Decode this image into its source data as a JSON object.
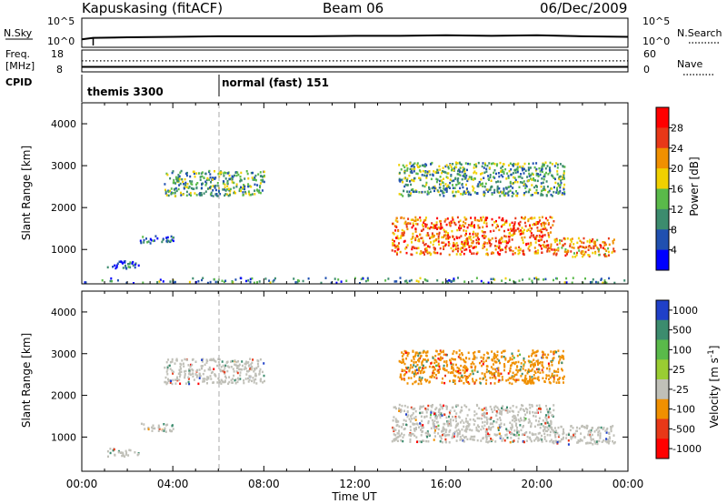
{
  "header": {
    "station": "Kapuskasing (fitACF)",
    "beam": "Beam 06",
    "date": "06/Dec/2009"
  },
  "left_labels": {
    "nsky": "N.Sky",
    "freq_line1": "Freq.",
    "freq_line2": "[MHz]",
    "cpid": "CPID"
  },
  "right_labels": {
    "nsearch": "N.Search",
    "nave": "Nave"
  },
  "cpid_segments": [
    "themis 3300",
    "normal (fast) 151"
  ],
  "chart_data": [
    {
      "type": "line",
      "panel": "noise",
      "ylabel": "N.Sky",
      "ytick_labels_left": [
        "10^5",
        "10^0"
      ],
      "ytick_labels_right": [
        "10^5",
        "10^0"
      ],
      "right_axis_label": "N.Search",
      "x": [
        0,
        0.5,
        2,
        4,
        6,
        8,
        10,
        12,
        14,
        16,
        18,
        20,
        22,
        24
      ],
      "series": [
        {
          "values": [
            1.2,
            1.5,
            1.6,
            1.7,
            1.8,
            1.8,
            1.8,
            1.9,
            1.9,
            2.0,
            1.9,
            2.0,
            1.8,
            1.7
          ]
        }
      ]
    },
    {
      "type": "line",
      "panel": "frequency",
      "ylabel": "Freq. [MHz]",
      "ytick_labels_left": [
        "18",
        "8"
      ],
      "ytick_labels_right": [
        "60",
        "0"
      ],
      "right_axis_label": "Nave",
      "x": [
        0,
        4,
        8,
        12,
        16,
        20,
        24
      ],
      "series": [
        {
          "values": [
            10.5,
            10.5,
            10.5,
            10.5,
            10.5,
            10.5,
            10.5
          ]
        },
        {
          "values": [
            13.5,
            13.5,
            13.5,
            13.5,
            13.5,
            13.5,
            13.5
          ]
        }
      ]
    },
    {
      "type": "heatmap",
      "panel": "power",
      "xlabel": "Time UT",
      "ylabel": "Slant Range [km]",
      "colorbar_label": "Power [dB]",
      "colorbar_ticks": [
        "28",
        "24",
        "20",
        "16",
        "12",
        "8",
        "4"
      ],
      "colors": [
        "#0000ff",
        "#2050b0",
        "#3c8c6e",
        "#5aba4a",
        "#f0d000",
        "#f09000",
        "#e83818",
        "#ff0000"
      ],
      "x_ticks": [
        "00:00",
        "04:00",
        "08:00",
        "12:00",
        "16:00",
        "20:00",
        "00:00"
      ],
      "y_ticks": [
        "4000",
        "3000",
        "2000",
        "1000"
      ],
      "xlim": [
        0,
        24
      ],
      "ylim": [
        180,
        4500
      ],
      "regions": [
        {
          "t": [
            1.1,
            2.5
          ],
          "r": [
            550,
            750
          ],
          "value": 6
        },
        {
          "t": [
            2.5,
            4.0
          ],
          "r": [
            1150,
            1350
          ],
          "value": 6
        },
        {
          "t": [
            3.6,
            8.0
          ],
          "r": [
            2300,
            2900
          ],
          "value": 12
        },
        {
          "t": [
            13.9,
            21.2
          ],
          "r": [
            2300,
            3100
          ],
          "value": 12
        },
        {
          "t": [
            13.6,
            20.7
          ],
          "r": [
            900,
            1800
          ],
          "value": 24
        },
        {
          "t": [
            20.7,
            23.4
          ],
          "r": [
            850,
            1300
          ],
          "value": 22
        },
        {
          "t": [
            0,
            24
          ],
          "r": [
            180,
            350
          ],
          "value": 10
        }
      ]
    },
    {
      "type": "heatmap",
      "panel": "velocity",
      "xlabel": "Time UT",
      "ylabel": "Slant Range [km]",
      "colorbar_label": "Velocity [m s^-1]",
      "colorbar_ticks": [
        "1000",
        "500",
        "100",
        "25",
        "-25",
        "-100",
        "-500",
        "-1000"
      ],
      "colors": [
        "#2040c8",
        "#3c8c6e",
        "#5aba4a",
        "#9acd32",
        "#c0c0b8",
        "#f09000",
        "#e83818",
        "#ff0000"
      ],
      "x_ticks": [
        "00:00",
        "04:00",
        "08:00",
        "12:00",
        "16:00",
        "20:00",
        "00:00"
      ],
      "y_ticks": [
        "4000",
        "3000",
        "2000",
        "1000"
      ],
      "xlim": [
        0,
        24
      ],
      "ylim": [
        180,
        4500
      ],
      "regions": [
        {
          "t": [
            1.1,
            2.5
          ],
          "r": [
            550,
            750
          ],
          "value": 0
        },
        {
          "t": [
            2.5,
            4.0
          ],
          "r": [
            1150,
            1350
          ],
          "value": 0
        },
        {
          "t": [
            3.6,
            8.0
          ],
          "r": [
            2300,
            2900
          ],
          "value": 0
        },
        {
          "t": [
            13.9,
            21.2
          ],
          "r": [
            2300,
            3100
          ],
          "value": -50
        },
        {
          "t": [
            13.6,
            20.7
          ],
          "r": [
            900,
            1800
          ],
          "value": 0
        },
        {
          "t": [
            20.7,
            23.4
          ],
          "r": [
            850,
            1300
          ],
          "value": 0
        }
      ]
    }
  ],
  "x_axis": {
    "ticks": [
      "00:00",
      "04:00",
      "08:00",
      "12:00",
      "16:00",
      "20:00",
      "00:00"
    ],
    "label": "Time UT"
  }
}
